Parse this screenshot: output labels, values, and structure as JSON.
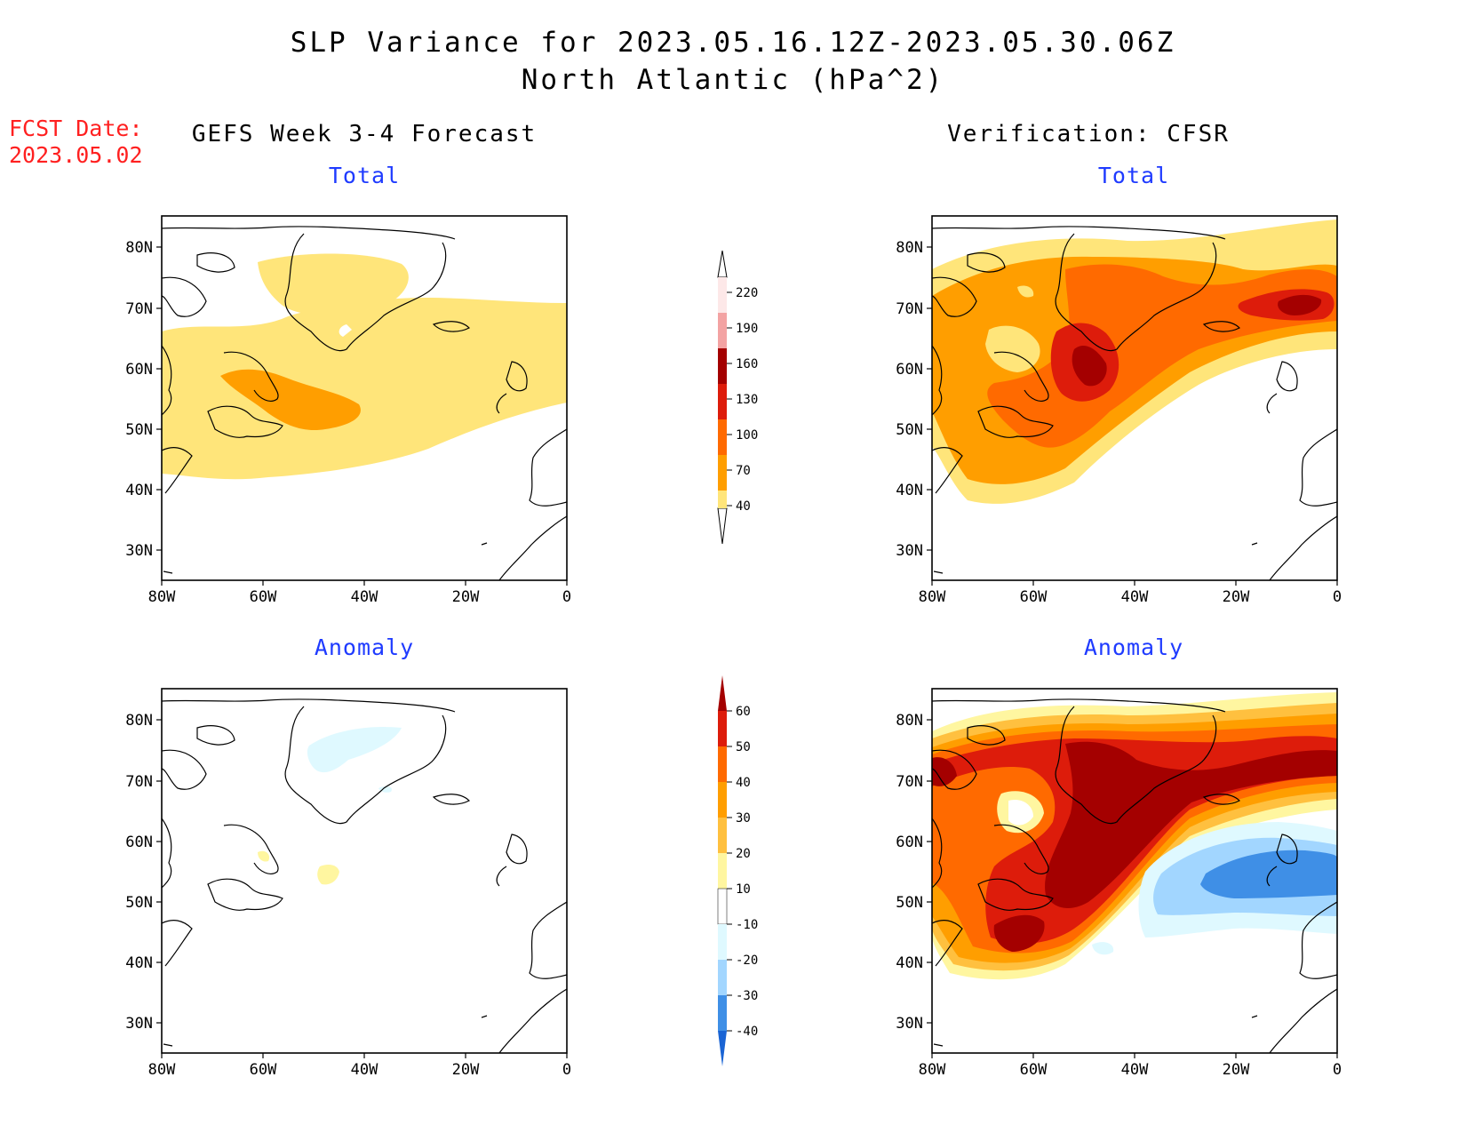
{
  "title": {
    "line1": "SLP Variance for 2023.05.16.12Z-2023.05.30.06Z",
    "line2": "North Atlantic (hPa^2)"
  },
  "fcst_date": {
    "label": "FCST Date:",
    "value": "2023.05.02"
  },
  "columns": {
    "left": "GEFS Week 3-4 Forecast",
    "right": "Verification: CFSR"
  },
  "panels": {
    "top_left": "Total",
    "top_right": "Total",
    "bottom_left": "Anomaly",
    "bottom_right": "Anomaly"
  },
  "axes": {
    "lat_labels": [
      "80N",
      "70N",
      "60N",
      "50N",
      "40N",
      "30N"
    ],
    "lon_labels": [
      "80W",
      "60W",
      "40W",
      "20W",
      "0"
    ]
  },
  "colorbars": {
    "total": {
      "labels": [
        "220",
        "190",
        "160",
        "130",
        "100",
        "70",
        "40"
      ],
      "colors": [
        "#fde8e8",
        "#f3a3a3",
        "#a40000",
        "#dd1c0b",
        "#ff6a00",
        "#ff9e00",
        "#ffe57a"
      ]
    },
    "anomaly": {
      "labels": [
        "60",
        "50",
        "40",
        "30",
        "20",
        "10",
        "-10",
        "-20",
        "-30",
        "-40"
      ],
      "colors": [
        "#a40000",
        "#dd1c0b",
        "#ff6a00",
        "#ff9e00",
        "#ffc03f",
        "#fff6a0",
        "#ffffff",
        "#dff9ff",
        "#a2d6ff",
        "#3f8fe6",
        "#1a64d4"
      ]
    }
  }
}
